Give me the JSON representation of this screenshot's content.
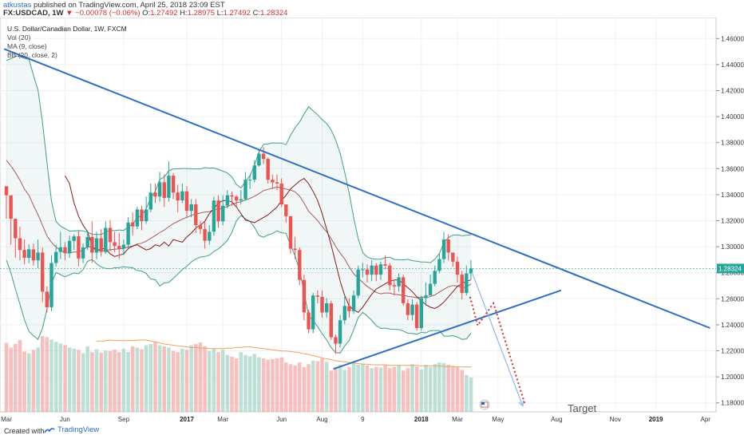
{
  "header": {
    "author": "atkustas",
    "published_text": "published on TradingView.com, April 25, 2018 23:09 EST",
    "symbol": "FX:USDCAD, 1W",
    "change": "▼ −0.00078 (−0.06%)",
    "ohlc": [
      {
        "label": "O:",
        "value": "1.27492"
      },
      {
        "label": "H:",
        "value": "1.28975"
      },
      {
        "label": "L:",
        "value": "1.27492"
      },
      {
        "label": "C:",
        "value": "1.28324"
      }
    ]
  },
  "legend": {
    "title": "U.S. Dollar/Canadian Dollar, 1W, FXCM",
    "items": [
      "Vol (20)",
      "MA (9, close)",
      "BB (20, close, 2)"
    ]
  },
  "annotations": {
    "target_label": "Target"
  },
  "footer": {
    "created_with": "Created with",
    "brand": "TradingView"
  },
  "colors": {
    "up": "#26a69a",
    "down": "#ef5350",
    "vol_up": "#a5d6c8",
    "vol_down": "#f7a9a9",
    "trend_line": "#2e6fc7",
    "bb_band": "#3d9f8c",
    "ma": "#8b1a1a",
    "vol_ma": "#f0a060",
    "projection": "#d32f2f"
  },
  "chart_data": {
    "type": "candlestick",
    "title": "U.S. Dollar/Canadian Dollar, 1W, FXCM",
    "price_axis": {
      "ylim": [
        1.17,
        1.47
      ],
      "ticks": [
        "1.46000",
        "1.44000",
        "1.42000",
        "1.40000",
        "1.38000",
        "1.36000",
        "1.34000",
        "1.32000",
        "1.30000",
        "1.28000",
        "1.26000",
        "1.24000",
        "1.22000",
        "1.20000",
        "1.18000"
      ],
      "tick_values": [
        1.46,
        1.44,
        1.42,
        1.4,
        1.38,
        1.36,
        1.34,
        1.32,
        1.3,
        1.28,
        1.26,
        1.24,
        1.22,
        1.2,
        1.18
      ],
      "last_price_label": "1.28324",
      "last_price": 1.28324
    },
    "time_axis": {
      "ticks": [
        {
          "label": "Mar",
          "week": 0,
          "bold": false
        },
        {
          "label": "Jun",
          "week": 13,
          "bold": false
        },
        {
          "label": "Sep",
          "week": 26,
          "bold": false
        },
        {
          "label": "2017",
          "week": 40,
          "bold": true
        },
        {
          "label": "Mar",
          "week": 48,
          "bold": false
        },
        {
          "label": "Jun",
          "week": 61,
          "bold": false
        },
        {
          "label": "Aug",
          "week": 70,
          "bold": false
        },
        {
          "label": "9",
          "week": 79,
          "bold": false
        },
        {
          "label": "2018",
          "week": 92,
          "bold": true
        },
        {
          "label": "Mar",
          "week": 100,
          "bold": false
        },
        {
          "label": "May",
          "week": 109,
          "bold": false
        },
        {
          "label": "Aug",
          "week": 122,
          "bold": false
        },
        {
          "label": "Nov",
          "week": 135,
          "bold": false
        },
        {
          "label": "2019",
          "week": 144,
          "bold": true
        },
        {
          "label": "Apr",
          "week": 155,
          "bold": false
        }
      ]
    },
    "close": [
      1.3395,
      1.3215,
      1.3065,
      1.2975,
      1.2915,
      1.298,
      1.2895,
      1.2955,
      1.2655,
      1.2535,
      1.2875,
      1.296,
      1.2995,
      1.295,
      1.3045,
      1.308,
      1.291,
      1.2995,
      1.3075,
      1.2955,
      1.3065,
      1.296,
      1.3145,
      1.3035,
      1.3006,
      1.2986,
      1.3016,
      1.3186,
      1.3156,
      1.3286,
      1.3196,
      1.3286,
      1.3416,
      1.3386,
      1.3496,
      1.3376,
      1.3546,
      1.3416,
      1.3356,
      1.3426,
      1.3276,
      1.3326,
      1.3166,
      1.3136,
      1.3046,
      1.3115,
      1.3355,
      1.3195,
      1.3315,
      1.3395,
      1.3385,
      1.3355,
      1.3365,
      1.3515,
      1.3515,
      1.3625,
      1.3715,
      1.3675,
      1.3515,
      1.3495,
      1.3485,
      1.3325,
      1.3235,
      1.2985,
      1.2975,
      1.2745,
      1.2495,
      1.2365,
      1.2625,
      1.2615,
      1.2495,
      1.2565,
      1.2305,
      1.2255,
      1.2435,
      1.2545,
      1.2505,
      1.2625,
      1.2825,
      1.2825,
      1.2785,
      1.2855,
      1.2785,
      1.2865,
      1.2855,
      1.2705,
      1.2695,
      1.2765,
      1.2565,
      1.2475,
      1.2555,
      1.2375,
      1.2605,
      1.2625,
      1.2715,
      1.2815,
      1.2905,
      1.3055,
      1.2955,
      1.2885,
      1.2785,
      1.2645,
      1.2795,
      1.28324
    ],
    "wick_high": [
      1.3435,
      1.3395,
      1.3215,
      1.3155,
      1.3055,
      1.3019,
      1.3025,
      1.3055,
      1.2995,
      1.2695,
      1.2935,
      1.3015,
      1.3115,
      1.3035,
      1.3085,
      1.3095,
      1.312,
      1.3025,
      1.3125,
      1.3195,
      1.3115,
      1.3135,
      1.3195,
      1.3205,
      1.3115,
      1.3106,
      1.3056,
      1.3226,
      1.3266,
      1.3306,
      1.3316,
      1.3386,
      1.3486,
      1.3486,
      1.3576,
      1.3556,
      1.3656,
      1.3566,
      1.3476,
      1.3486,
      1.3466,
      1.3366,
      1.3366,
      1.3196,
      1.3206,
      1.3165,
      1.3385,
      1.3395,
      1.3395,
      1.3435,
      1.3425,
      1.3395,
      1.3435,
      1.3575,
      1.3555,
      1.3665,
      1.3745,
      1.3765,
      1.3685,
      1.3555,
      1.3555,
      1.3525,
      1.3325,
      1.3235,
      1.3075,
      1.2995,
      1.2785,
      1.2515,
      1.2645,
      1.2665,
      1.2665,
      1.2605,
      1.2585,
      1.2325,
      1.2475,
      1.2615,
      1.2605,
      1.2665,
      1.2855,
      1.2875,
      1.2865,
      1.2895,
      1.2875,
      1.2885,
      1.2935,
      1.2875,
      1.2745,
      1.2795,
      1.2785,
      1.2595,
      1.2595,
      1.2575,
      1.2625,
      1.2725,
      1.2785,
      1.2855,
      1.2945,
      1.3115,
      1.3095,
      1.2955,
      1.2925,
      1.2815,
      1.2855,
      1.28975
    ],
    "wick_low": [
      1.3215,
      1.3015,
      1.2915,
      1.2895,
      1.2865,
      1.2875,
      1.2855,
      1.2835,
      1.2575,
      1.2495,
      1.2505,
      1.2845,
      1.2905,
      1.2895,
      1.2915,
      1.2975,
      1.285,
      1.2875,
      1.2975,
      1.2875,
      1.2905,
      1.2925,
      1.2945,
      1.2965,
      1.2956,
      1.2906,
      1.2936,
      1.2986,
      1.3086,
      1.3136,
      1.3126,
      1.3176,
      1.3266,
      1.3336,
      1.3346,
      1.3306,
      1.3346,
      1.3366,
      1.3266,
      1.3336,
      1.3226,
      1.3226,
      1.3106,
      1.3096,
      1.2986,
      1.3016,
      1.3085,
      1.3145,
      1.3165,
      1.3295,
      1.3315,
      1.3305,
      1.3325,
      1.3355,
      1.3445,
      1.3495,
      1.3615,
      1.3635,
      1.3485,
      1.3445,
      1.3435,
      1.3305,
      1.3185,
      1.2945,
      1.2905,
      1.2705,
      1.2435,
      1.2335,
      1.2335,
      1.2565,
      1.2455,
      1.2455,
      1.2285,
      1.2175,
      1.2225,
      1.2405,
      1.2455,
      1.2485,
      1.2605,
      1.2765,
      1.2725,
      1.2735,
      1.2735,
      1.2745,
      1.2825,
      1.2665,
      1.2625,
      1.2655,
      1.2545,
      1.2435,
      1.2435,
      1.2355,
      1.2355,
      1.2545,
      1.2645,
      1.2695,
      1.2795,
      1.2875,
      1.2895,
      1.2845,
      1.2725,
      1.2595,
      1.2625,
      1.27492
    ],
    "volume_ticks": [
      0,
      0,
      0
    ],
    "volume": [
      120,
      112,
      118,
      125,
      105,
      102,
      108,
      112,
      132,
      130,
      126,
      122,
      119,
      116,
      112,
      110,
      108,
      102,
      114,
      104,
      109,
      103,
      107,
      106,
      108,
      104,
      110,
      104,
      114,
      112,
      109,
      116,
      118,
      122,
      116,
      114,
      112,
      106,
      104,
      110,
      108,
      116,
      118,
      121,
      114,
      106,
      110,
      104,
      108,
      99,
      96,
      93,
      104,
      99,
      97,
      101,
      95,
      93,
      91,
      92,
      93,
      95,
      86,
      83,
      81,
      86,
      78,
      83,
      89,
      88,
      93,
      87,
      72,
      78,
      82,
      73,
      78,
      86,
      82,
      84,
      81,
      76,
      78,
      77,
      82,
      76,
      78,
      81,
      72,
      76,
      83,
      79,
      74,
      82,
      78,
      83,
      86,
      85,
      82,
      80,
      78,
      73,
      64,
      60
    ],
    "bollinger": {
      "upper": [
        1.4431,
        1.4445,
        1.4465,
        1.4464,
        1.4447,
        1.4441,
        1.4318,
        1.4205,
        1.3958,
        1.3644,
        1.335,
        1.3194,
        1.3158,
        1.3139,
        1.312,
        1.3122,
        1.3124,
        1.3122,
        1.3112,
        1.3096,
        1.3095,
        1.3094,
        1.3113,
        1.3124,
        1.3124,
        1.3129,
        1.3125,
        1.3153,
        1.3174,
        1.3223,
        1.3241,
        1.3293,
        1.3374,
        1.3426,
        1.3517,
        1.3536,
        1.3584,
        1.3598,
        1.3599,
        1.3601,
        1.3601,
        1.3599,
        1.3598,
        1.3598,
        1.3608,
        1.3603,
        1.3607,
        1.3593,
        1.3581,
        1.3566,
        1.3537,
        1.3478,
        1.3452,
        1.3501,
        1.3546,
        1.3627,
        1.3729,
        1.3788,
        1.3791,
        1.3798,
        1.3797,
        1.3797,
        1.3784,
        1.3858,
        1.3914,
        1.3959,
        1.4021,
        1.4076,
        1.4044,
        1.4014,
        1.3977,
        1.3947,
        1.3899,
        1.382,
        1.3719,
        1.3573,
        1.3412,
        1.3223,
        1.3062,
        1.2955,
        1.2921,
        1.2908,
        1.2905,
        1.2904,
        1.2916,
        1.2919,
        1.2902,
        1.29,
        1.2899,
        1.2903,
        1.2893,
        1.2889,
        1.2883,
        1.2883,
        1.2877,
        1.2904,
        1.2947,
        1.3033,
        1.3071,
        1.3089,
        1.3091,
        1.3084,
        1.3088,
        1.3092
      ],
      "middle": [
        1.3665,
        1.3621,
        1.357,
        1.3511,
        1.3443,
        1.3395,
        1.3317,
        1.3246,
        1.3165,
        1.3083,
        1.3033,
        1.2997,
        1.2972,
        1.2954,
        1.2952,
        1.296,
        1.2958,
        1.2974,
        1.3,
        1.2999,
        1.2982,
        1.2969,
        1.2973,
        1.2977,
        1.2981,
        1.2984,
        1.2986,
        1.2998,
        1.3006,
        1.302,
        1.3027,
        1.3043,
        1.3064,
        1.3086,
        1.3108,
        1.3129,
        1.3154,
        1.3177,
        1.3194,
        1.3213,
        1.3225,
        1.3241,
        1.3252,
        1.3259,
        1.3267,
        1.3269,
        1.3285,
        1.3289,
        1.3297,
        1.3308,
        1.3324,
        1.3338,
        1.3346,
        1.3358,
        1.3371,
        1.3388,
        1.3408,
        1.3431,
        1.3441,
        1.3449,
        1.3459,
        1.3452,
        1.3443,
        1.3435,
        1.3422,
        1.3389,
        1.3335,
        1.3273,
        1.3238,
        1.32,
        1.3155,
        1.3115,
        1.3062,
        1.3003,
        1.2951,
        1.2906,
        1.2845,
        1.2792,
        1.2758,
        1.2725,
        1.2695,
        1.2671,
        1.2649,
        1.2638,
        1.2645,
        1.2643,
        1.2634,
        1.2631,
        1.2626,
        1.2619,
        1.2614,
        1.2608,
        1.2613,
        1.2611,
        1.2616,
        1.263,
        1.2652,
        1.2673,
        1.2692,
        1.2702,
        1.2698,
        1.2685,
        1.269,
        1.2714
      ],
      "lower": [
        1.2899,
        1.2797,
        1.2674,
        1.2558,
        1.2439,
        1.2348,
        1.2316,
        1.2288,
        1.2373,
        1.2521,
        1.2717,
        1.2801,
        1.2786,
        1.2769,
        1.2784,
        1.2798,
        1.2792,
        1.2825,
        1.2888,
        1.2902,
        1.2869,
        1.2844,
        1.2833,
        1.283,
        1.2838,
        1.2839,
        1.2846,
        1.2842,
        1.2838,
        1.2817,
        1.2813,
        1.2793,
        1.2753,
        1.2746,
        1.2699,
        1.2722,
        1.2725,
        1.2757,
        1.2789,
        1.2825,
        1.2848,
        1.2883,
        1.2905,
        1.292,
        1.2925,
        1.2935,
        1.2963,
        1.2984,
        1.3013,
        1.305,
        1.3111,
        1.3198,
        1.3239,
        1.3215,
        1.3196,
        1.3149,
        1.3086,
        1.3073,
        1.309,
        1.3101,
        1.3122,
        1.3107,
        1.3103,
        1.3011,
        1.293,
        1.2818,
        1.2649,
        1.247,
        1.2432,
        1.2385,
        1.2332,
        1.2283,
        1.2225,
        1.2186,
        1.2183,
        1.2238,
        1.2278,
        1.2362,
        1.2455,
        1.2495,
        1.2468,
        1.2433,
        1.2393,
        1.2372,
        1.2374,
        1.2367,
        1.2365,
        1.2363,
        1.2352,
        1.2335,
        1.2334,
        1.2327,
        1.2342,
        1.2338,
        1.2354,
        1.2356,
        1.2356,
        1.2313,
        1.2313,
        1.2316,
        1.2306,
        1.2287,
        1.2292,
        1.2335
      ]
    },
    "moving_average": [
      1.3545,
      1.3485,
      1.3335,
      1.3235,
      1.3165,
      1.3115,
      1.3005,
      1.2965,
      1.2985,
      1.2985,
      1.2945,
      1.2925,
      1.2935,
      1.2945,
      1.2985,
      1.3005,
      1.3015,
      1.2995,
      1.2975,
      1.2985,
      1.3015,
      1.3005,
      1.3035,
      1.3005,
      1.3055,
      1.3045,
      1.3035,
      1.3075,
      1.3105,
      1.3145,
      1.3165,
      1.3195,
      1.3255,
      1.3295,
      1.3335,
      1.3355,
      1.3355,
      1.3345,
      1.3305,
      1.3255,
      1.3205,
      1.3195,
      1.3185,
      1.3205,
      1.3225,
      1.3245,
      1.3275,
      1.3305,
      1.3355,
      1.3395,
      1.3445,
      1.3475,
      1.3505,
      1.3525,
      1.3485,
      1.3425,
      1.3355,
      1.3255,
      1.3135,
      1.3015,
      1.2875,
      1.2735,
      1.2625,
      1.2545,
      1.2515,
      1.2495,
      1.2535,
      1.2585,
      1.2635,
      1.2675,
      1.2695,
      1.2715,
      1.2735,
      1.2745,
      1.2745,
      1.2715,
      1.2685,
      1.2655,
      1.2615,
      1.2585,
      1.2555,
      1.2535,
      1.2525,
      1.2545,
      1.2575,
      1.2615,
      1.2655,
      1.2695,
      1.2715,
      1.2735,
      1.2745
    ],
    "volume_ma": [
      123,
      123,
      124,
      125,
      124,
      124,
      124,
      124,
      124,
      125,
      125,
      125,
      123,
      122,
      120,
      118,
      117,
      116,
      115,
      114,
      113,
      112,
      112,
      111,
      111,
      110,
      110,
      110,
      110,
      111,
      111,
      112,
      112,
      113,
      113,
      112,
      111,
      110,
      109,
      108,
      107,
      106,
      106,
      105,
      104,
      103,
      101,
      100,
      98,
      96,
      94,
      92,
      91,
      89,
      88,
      87,
      86,
      85,
      84,
      83,
      83,
      82,
      82,
      82,
      82,
      81,
      81,
      81,
      81,
      81,
      81,
      81,
      80,
      80,
      80,
      80,
      80,
      79,
      79,
      79,
      78,
      78,
      78,
      78
    ],
    "trendlines": [
      {
        "name": "descending resistance",
        "points": [
          [
            -0.5,
            1.452
          ],
          [
            156,
            1.2375
          ]
        ]
      },
      {
        "name": "ascending support",
        "points": [
          [
            72.5,
            1.206
          ],
          [
            123,
            1.2665
          ]
        ]
      }
    ],
    "projections": {
      "blue_arrow": [
        [
          103.2,
          1.2805
        ],
        [
          114.5,
          1.1775
        ]
      ],
      "red_dotted": [
        [
          102.8,
          1.2615
        ],
        [
          104.5,
          1.2395
        ],
        [
          108,
          1.2565
        ],
        [
          115,
          1.1785
        ]
      ]
    }
  }
}
